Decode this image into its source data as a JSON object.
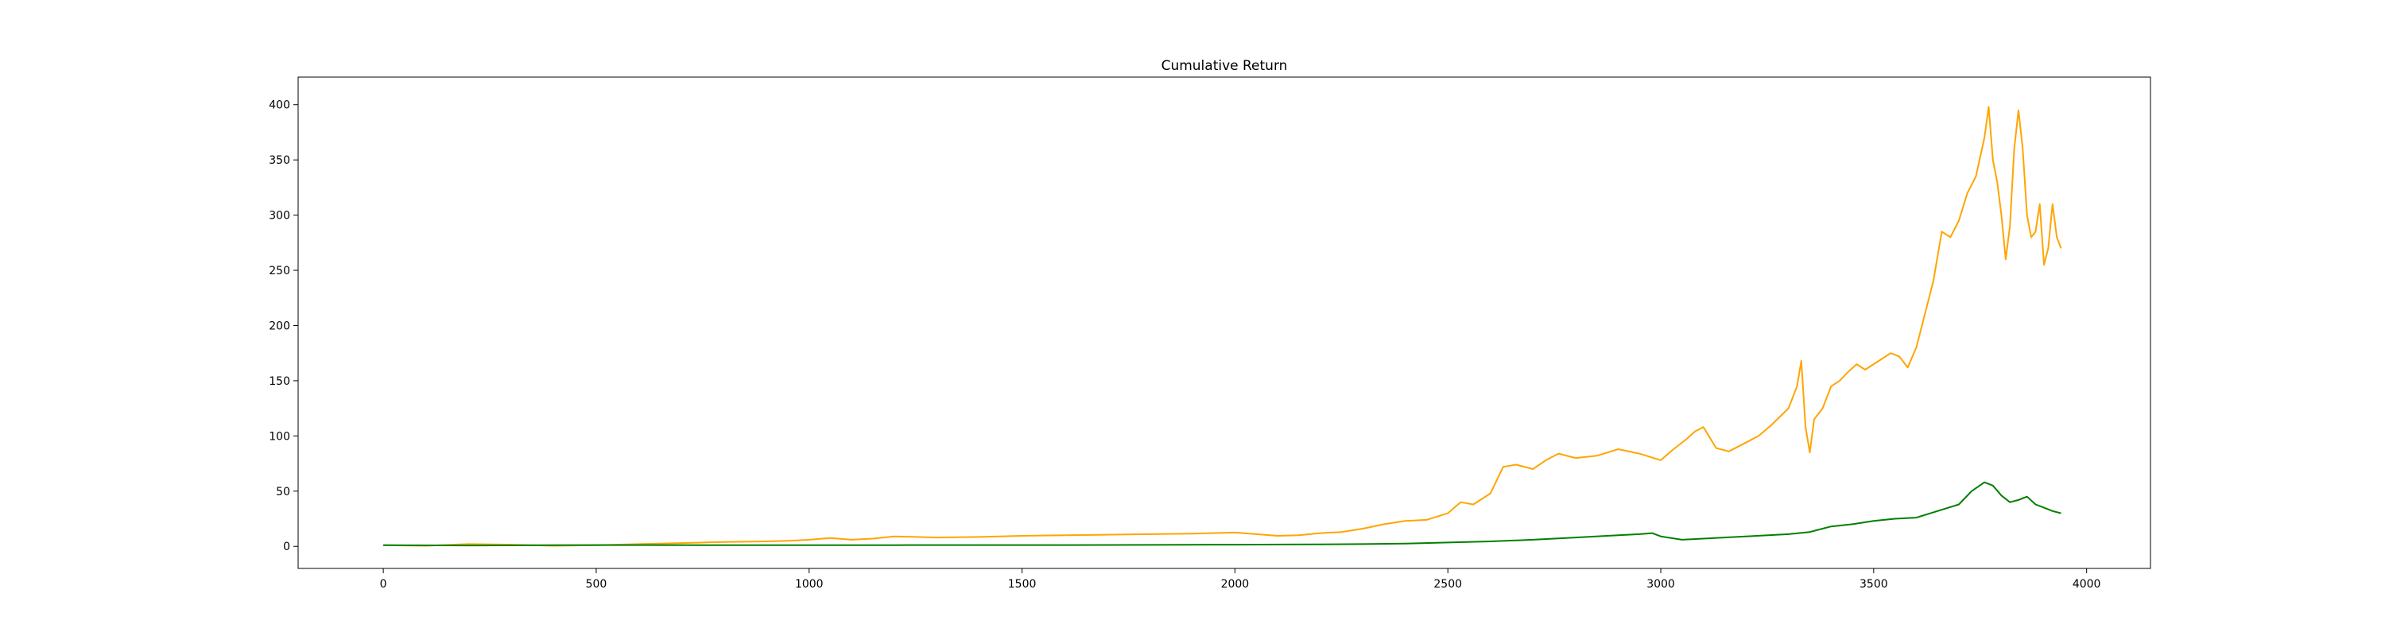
{
  "chart_data": {
    "type": "line",
    "title": "Cumulative Return",
    "xlabel": "",
    "ylabel": "",
    "xlim": [
      -200,
      4150
    ],
    "ylim": [
      -20,
      425
    ],
    "xticks": [
      0,
      500,
      1000,
      1500,
      2000,
      2500,
      3000,
      3500,
      4000
    ],
    "yticks": [
      0,
      50,
      100,
      150,
      200,
      250,
      300,
      350,
      400
    ],
    "grid": false,
    "legend": "none",
    "series": [
      {
        "color": "#ffa500",
        "x": [
          0,
          100,
          200,
          300,
          400,
          500,
          600,
          700,
          800,
          900,
          950,
          1000,
          1050,
          1100,
          1150,
          1200,
          1300,
          1400,
          1500,
          1600,
          1700,
          1800,
          1900,
          2000,
          2050,
          2100,
          2150,
          2200,
          2250,
          2300,
          2350,
          2400,
          2450,
          2500,
          2530,
          2560,
          2600,
          2630,
          2660,
          2700,
          2730,
          2760,
          2800,
          2850,
          2900,
          2950,
          3000,
          3030,
          3060,
          3080,
          3100,
          3130,
          3160,
          3200,
          3230,
          3260,
          3300,
          3320,
          3330,
          3340,
          3350,
          3360,
          3380,
          3400,
          3420,
          3440,
          3460,
          3480,
          3500,
          3520,
          3540,
          3560,
          3580,
          3600,
          3620,
          3640,
          3660,
          3680,
          3700,
          3720,
          3740,
          3760,
          3770,
          3780,
          3790,
          3800,
          3810,
          3820,
          3830,
          3840,
          3850,
          3860,
          3870,
          3880,
          3890,
          3900,
          3910,
          3920,
          3930,
          3940
        ],
        "values": [
          1,
          0.5,
          2,
          1.5,
          0.5,
          1,
          2,
          3,
          4,
          4.5,
          5,
          6,
          7.5,
          6,
          7,
          9,
          8,
          8.5,
          9.5,
          10,
          10.5,
          11,
          11.5,
          12.5,
          11,
          9.5,
          10,
          12,
          13,
          16,
          20,
          23,
          24,
          30,
          40,
          38,
          48,
          72,
          74,
          70,
          78,
          84,
          80,
          82,
          88,
          84,
          78,
          88,
          97,
          104,
          108,
          89,
          86,
          94,
          100,
          110,
          125,
          145,
          168,
          108,
          85,
          115,
          125,
          145,
          150,
          158,
          165,
          160,
          165,
          170,
          175,
          172,
          162,
          180,
          210,
          240,
          285,
          280,
          295,
          320,
          335,
          370,
          398,
          350,
          330,
          300,
          260,
          290,
          360,
          395,
          360,
          300,
          280,
          285,
          310,
          255,
          270,
          310,
          280,
          270
        ]
      },
      {
        "color": "#008000",
        "x": [
          0,
          200,
          400,
          600,
          800,
          1000,
          1200,
          1400,
          1600,
          1800,
          2000,
          2200,
          2300,
          2400,
          2500,
          2600,
          2700,
          2800,
          2900,
          2950,
          2980,
          3000,
          3050,
          3100,
          3200,
          3300,
          3350,
          3400,
          3450,
          3500,
          3550,
          3600,
          3650,
          3700,
          3730,
          3760,
          3780,
          3800,
          3820,
          3840,
          3860,
          3880,
          3900,
          3920,
          3940
        ],
        "values": [
          1,
          0.8,
          1,
          1.2,
          1,
          1,
          1.1,
          1.2,
          1.2,
          1.3,
          1.5,
          1.8,
          2,
          2.5,
          3.5,
          4.5,
          6,
          8,
          10,
          11,
          12,
          9,
          6,
          7,
          9,
          11,
          13,
          18,
          20,
          23,
          25,
          26,
          32,
          38,
          50,
          58,
          55,
          46,
          40,
          42,
          45,
          38,
          35,
          32,
          30
        ]
      }
    ]
  }
}
